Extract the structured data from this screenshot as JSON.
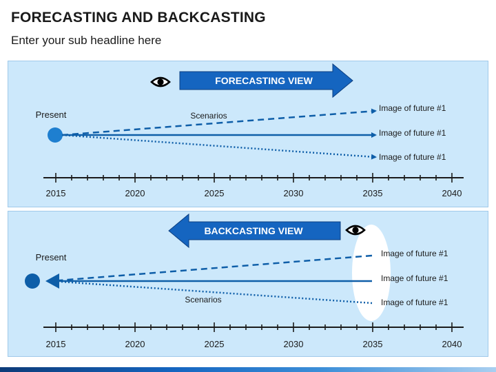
{
  "header": {
    "title": "FORECASTING AND BACKCASTING",
    "subtitle": "Enter your sub headline here"
  },
  "colors": {
    "panel_bg": "#cce8fb",
    "arrow_fill": "#1565c0",
    "line_color": "#0e5ea8",
    "present_dot_top": "#1e7fd0",
    "present_dot_bottom": "#0e5ea8"
  },
  "forecasting": {
    "banner_label": "FORECASTING VIEW",
    "eye_icon": "eye-icon",
    "present_label": "Present",
    "scenarios_label": "Scenarios",
    "futures": [
      "Image of future #1",
      "Image of future #1",
      "Image of future #1"
    ],
    "timeline_years": [
      "2015",
      "2020",
      "2025",
      "2030",
      "2035",
      "2040"
    ]
  },
  "backcasting": {
    "banner_label": "BACKCASTING VIEW",
    "eye_icon": "eye-icon",
    "present_label": "Present",
    "scenarios_label": "Scenarios",
    "futures": [
      "Image of future #1",
      "Image of future #1",
      "Image of future #1"
    ],
    "timeline_years": [
      "2015",
      "2020",
      "2025",
      "2030",
      "2035",
      "2040"
    ]
  }
}
